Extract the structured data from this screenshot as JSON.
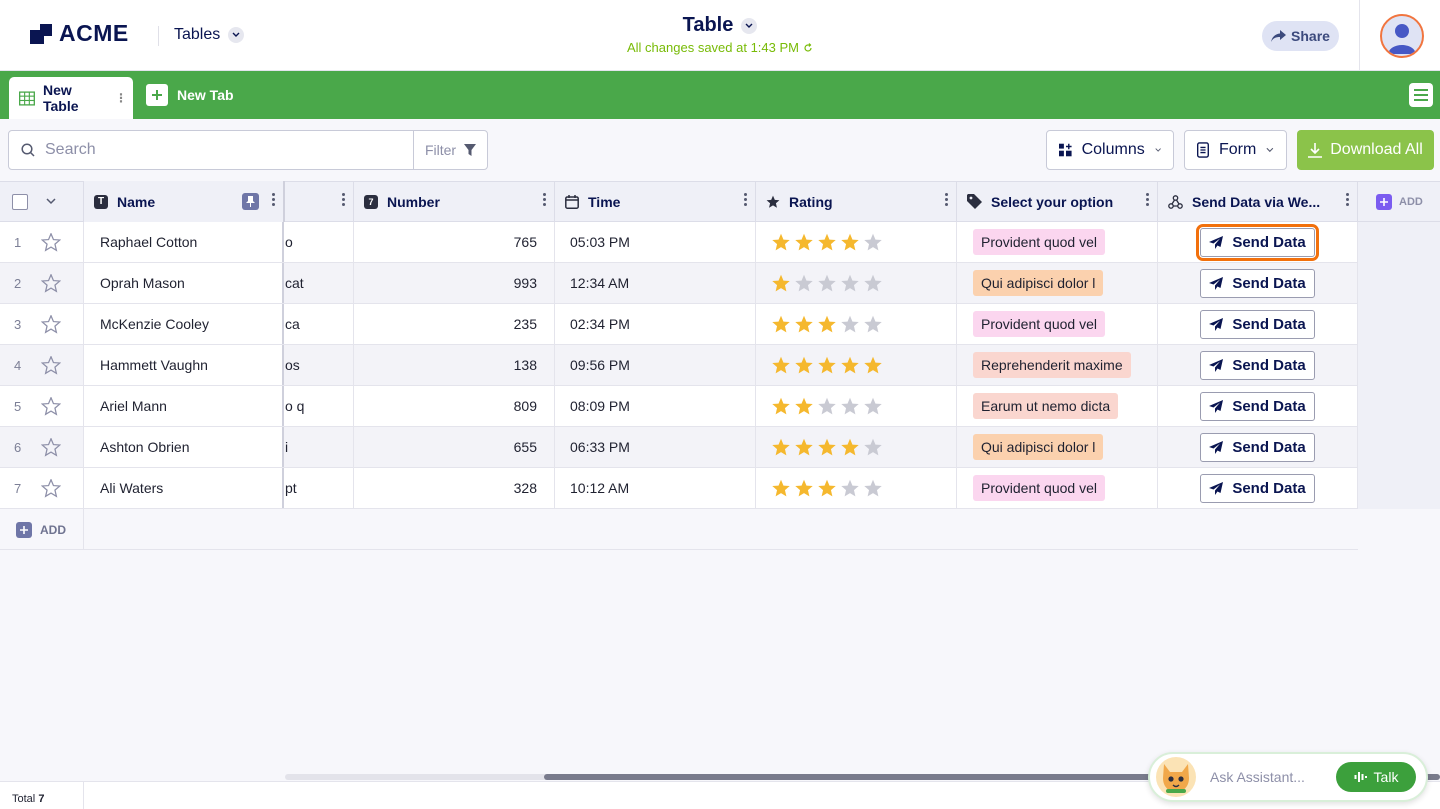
{
  "header": {
    "logo_text": "ACME",
    "tables_label": "Tables",
    "title": "Table",
    "saved_status": "All changes saved at 1:43 PM",
    "share_label": "Share"
  },
  "tabs": {
    "active_label": "New Table",
    "new_tab_label": "New Tab"
  },
  "toolbar": {
    "search_placeholder": "Search",
    "filter_label": "Filter",
    "columns_label": "Columns",
    "form_label": "Form",
    "download_label": "Download All"
  },
  "columns": {
    "name": "Name",
    "number": "Number",
    "time": "Time",
    "rating": "Rating",
    "select": "Select your option",
    "send": "Send Data via We...",
    "add": "ADD"
  },
  "rows": [
    {
      "num": "1",
      "name": "Raphael Cotton",
      "text": "o",
      "number": "765",
      "time": "05:03 PM",
      "rating": 4,
      "option": "Provident quod vel",
      "option_color": "#fbd6ef",
      "send": "Send Data"
    },
    {
      "num": "2",
      "name": "Oprah Mason",
      "text": "cat",
      "number": "993",
      "time": "12:34 AM",
      "rating": 1,
      "option": "Qui adipisci dolor l",
      "option_color": "#fbd1ae",
      "send": "Send Data"
    },
    {
      "num": "3",
      "name": "McKenzie Cooley",
      "text": "ca",
      "number": "235",
      "time": "02:34 PM",
      "rating": 3,
      "option": "Provident quod vel",
      "option_color": "#fbd6ef",
      "send": "Send Data"
    },
    {
      "num": "4",
      "name": "Hammett Vaughn",
      "text": "os",
      "number": "138",
      "time": "09:56 PM",
      "rating": 5,
      "option": "Reprehenderit maxime",
      "option_color": "#fad6cf",
      "send": "Send Data"
    },
    {
      "num": "5",
      "name": "Ariel Mann",
      "text": "o q",
      "number": "809",
      "time": "08:09 PM",
      "rating": 2,
      "option": "Earum ut nemo dicta",
      "option_color": "#fad6cf",
      "send": "Send Data"
    },
    {
      "num": "6",
      "name": "Ashton Obrien",
      "text": "i",
      "number": "655",
      "time": "06:33 PM",
      "rating": 4,
      "option": "Qui adipisci dolor l",
      "option_color": "#fbd1ae",
      "send": "Send Data"
    },
    {
      "num": "7",
      "name": "Ali Waters",
      "text": "pt",
      "number": "328",
      "time": "10:12 AM",
      "rating": 3,
      "option": "Provident quod vel",
      "option_color": "#fbd6ef",
      "send": "Send Data"
    }
  ],
  "add_row_label": "ADD",
  "footer": {
    "total_label": "Total",
    "total_count": "7"
  },
  "assistant": {
    "placeholder": "Ask Assistant...",
    "talk_label": "Talk"
  },
  "colors": {
    "accent_green": "#4aa84a",
    "download_green": "#8bc34a",
    "brand_navy": "#0a1551",
    "star_on": "#f5b82e",
    "star_off": "#c9cad3",
    "focus_outline": "#f2700c"
  }
}
